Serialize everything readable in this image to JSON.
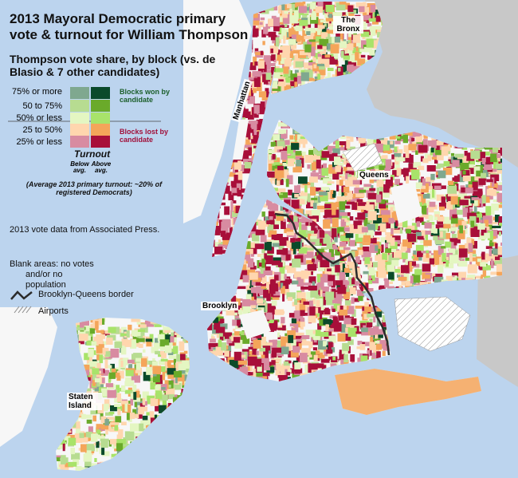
{
  "map": {
    "title": "2013 Mayoral Democratic primary vote & turnout for William Thompson",
    "subtitle": "Thompson vote share, by block (vs. de Blasio & 7 other candidates)",
    "legend": {
      "rows": [
        {
          "label": "75% or more",
          "below_avg_color": "#7fa88f",
          "above_avg_color": "#0b4a2a"
        },
        {
          "label": "50 to 75%",
          "below_avg_color": "#b7dc91",
          "above_avg_color": "#6aaa2a"
        },
        {
          "label": "50% or less",
          "below_avg_color": "#e4f6c2",
          "above_avg_color": "#a8e36a"
        },
        {
          "label": "25 to 50%",
          "below_avg_color": "#ffd6ae",
          "above_avg_color": "#f4a55a"
        },
        {
          "label": "25% or less",
          "below_avg_color": "#d88ba1",
          "above_avg_color": "#a80f3a"
        }
      ],
      "won_note": "Blocks won by candidate",
      "lost_note": "Blocks lost by candidate",
      "won_color": "#1b5e2a",
      "lost_color": "#a0103a",
      "turnout_label": "Turnout",
      "below_label": "Below avg.",
      "above_label": "Above avg.",
      "avg_note": "(Average 2013 primary turnout: ~20% of registered Democrats)"
    },
    "source_note": "2013 vote data from Associated Press.",
    "blank_note_line1": "Blank areas: no votes",
    "blank_note_line2": "and/or no population",
    "border_label": "Brooklyn-Queens border",
    "airports_label": "Airports",
    "boroughs": {
      "bronx": "The Bronx",
      "manhattan": "Manhattan",
      "queens": "Queens",
      "brooklyn": "Brooklyn",
      "staten_island": "Staten Island"
    },
    "colors": {
      "water": "#bcd4ee",
      "land_outside": "#c8c8c8",
      "border_line": "#2b2b2b"
    }
  }
}
